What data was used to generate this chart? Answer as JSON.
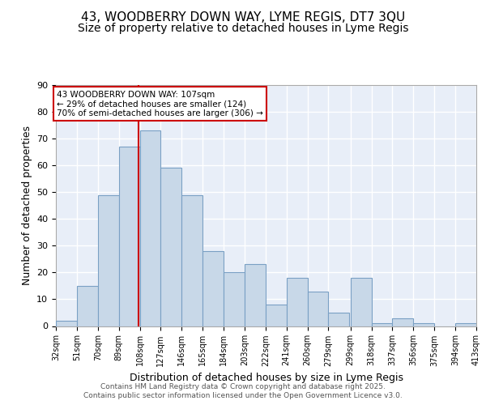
{
  "title1": "43, WOODBERRY DOWN WAY, LYME REGIS, DT7 3QU",
  "title2": "Size of property relative to detached houses in Lyme Regis",
  "xlabel": "Distribution of detached houses by size in Lyme Regis",
  "ylabel": "Number of detached properties",
  "bin_edges": [
    32,
    51,
    70,
    89,
    108,
    127,
    146,
    165,
    184,
    203,
    222,
    241,
    260,
    279,
    299,
    318,
    337,
    356,
    375,
    394,
    413
  ],
  "bar_heights": [
    2,
    15,
    49,
    67,
    73,
    59,
    49,
    28,
    20,
    23,
    8,
    18,
    13,
    5,
    18,
    1,
    3,
    1,
    0,
    1
  ],
  "bar_color": "#c8d8e8",
  "bar_edgecolor": "#7aa0c4",
  "bar_linewidth": 0.8,
  "red_line_x": 107,
  "annotation_text": "43 WOODBERRY DOWN WAY: 107sqm\n← 29% of detached houses are smaller (124)\n70% of semi-detached houses are larger (306) →",
  "annotation_box_color": "white",
  "annotation_box_edgecolor": "#cc0000",
  "background_color": "#e8eef8",
  "grid_color": "white",
  "ylim": [
    0,
    90
  ],
  "yticks": [
    0,
    10,
    20,
    30,
    40,
    50,
    60,
    70,
    80,
    90
  ],
  "footer_line1": "Contains HM Land Registry data © Crown copyright and database right 2025.",
  "footer_line2": "Contains public sector information licensed under the Open Government Licence v3.0.",
  "title1_fontsize": 11,
  "title2_fontsize": 10,
  "xlabel_fontsize": 9,
  "ylabel_fontsize": 9
}
